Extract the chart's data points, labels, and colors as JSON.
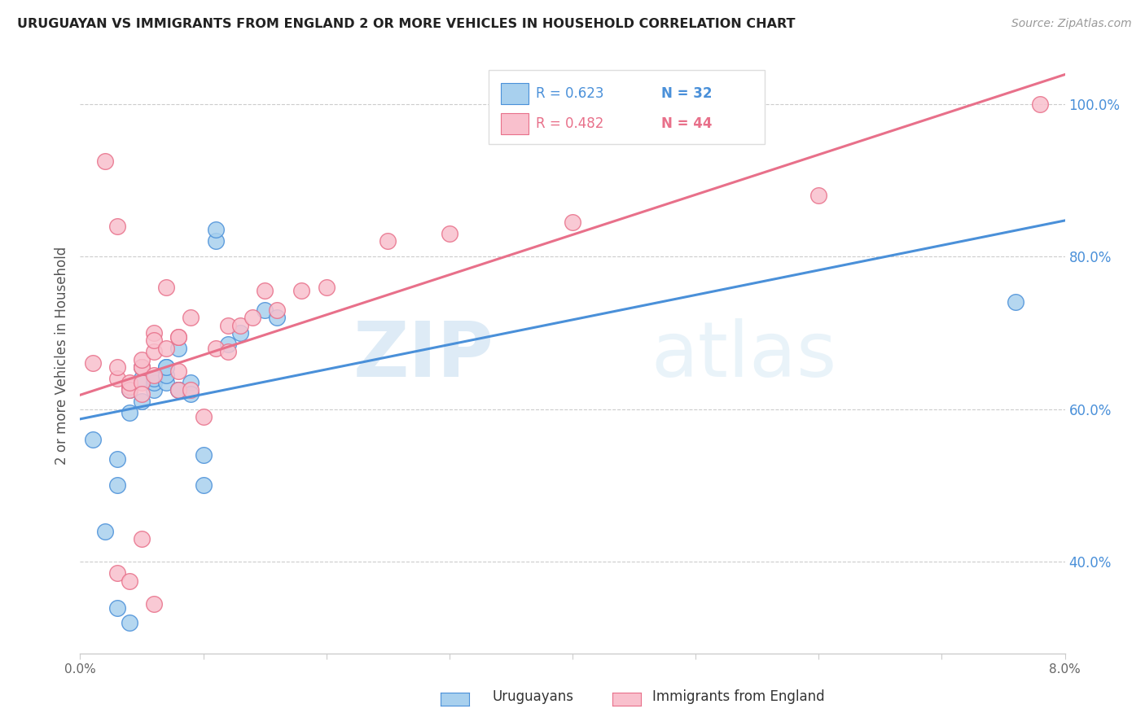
{
  "title": "URUGUAYAN VS IMMIGRANTS FROM ENGLAND 2 OR MORE VEHICLES IN HOUSEHOLD CORRELATION CHART",
  "source": "Source: ZipAtlas.com",
  "ylabel_label": "2 or more Vehicles in Household",
  "legend_label1": "Uruguayans",
  "legend_label2": "Immigrants from England",
  "R1": 0.623,
  "N1": 32,
  "R2": 0.482,
  "N2": 44,
  "color1": "#a8d0ee",
  "color2": "#f9c0cd",
  "line_color1": "#4a90d9",
  "line_color2": "#e8708a",
  "watermark_zip": "ZIP",
  "watermark_atlas": "atlas",
  "xlim": [
    0.0,
    0.08
  ],
  "ylim": [
    0.28,
    1.06
  ],
  "x_tick_vals": [
    0.0,
    0.01,
    0.02,
    0.03,
    0.04,
    0.05,
    0.06,
    0.07,
    0.08
  ],
  "x_tick_labels": [
    "0.0%",
    "",
    "",
    "",
    "",
    "",
    "",
    "",
    "8.0%"
  ],
  "y_tick_vals": [
    0.4,
    0.6,
    0.8,
    1.0
  ],
  "y_tick_labels": [
    "40.0%",
    "60.0%",
    "80.0%",
    "100.0%"
  ],
  "uruguayan_x": [
    0.001,
    0.002,
    0.003,
    0.003,
    0.004,
    0.004,
    0.005,
    0.005,
    0.005,
    0.006,
    0.006,
    0.006,
    0.007,
    0.007,
    0.007,
    0.007,
    0.008,
    0.008,
    0.008,
    0.009,
    0.009,
    0.01,
    0.01,
    0.011,
    0.011,
    0.012,
    0.013,
    0.015,
    0.016,
    0.076,
    0.003,
    0.004
  ],
  "uruguayan_y": [
    0.56,
    0.44,
    0.5,
    0.535,
    0.595,
    0.625,
    0.61,
    0.64,
    0.655,
    0.625,
    0.635,
    0.64,
    0.655,
    0.635,
    0.645,
    0.655,
    0.625,
    0.68,
    0.625,
    0.635,
    0.62,
    0.5,
    0.54,
    0.82,
    0.835,
    0.685,
    0.7,
    0.73,
    0.72,
    0.74,
    0.34,
    0.32
  ],
  "england_x": [
    0.001,
    0.002,
    0.003,
    0.003,
    0.003,
    0.004,
    0.004,
    0.004,
    0.005,
    0.005,
    0.005,
    0.005,
    0.005,
    0.006,
    0.006,
    0.006,
    0.006,
    0.007,
    0.007,
    0.008,
    0.008,
    0.008,
    0.008,
    0.009,
    0.009,
    0.01,
    0.011,
    0.012,
    0.012,
    0.013,
    0.014,
    0.015,
    0.016,
    0.018,
    0.02,
    0.025,
    0.03,
    0.04,
    0.06,
    0.003,
    0.004,
    0.005,
    0.006,
    0.078
  ],
  "england_y": [
    0.66,
    0.925,
    0.64,
    0.655,
    0.84,
    0.63,
    0.625,
    0.635,
    0.635,
    0.655,
    0.62,
    0.655,
    0.665,
    0.645,
    0.7,
    0.675,
    0.69,
    0.68,
    0.76,
    0.625,
    0.695,
    0.65,
    0.695,
    0.72,
    0.625,
    0.59,
    0.68,
    0.675,
    0.71,
    0.71,
    0.72,
    0.755,
    0.73,
    0.755,
    0.76,
    0.82,
    0.83,
    0.845,
    0.88,
    0.385,
    0.375,
    0.43,
    0.345,
    1.0
  ]
}
